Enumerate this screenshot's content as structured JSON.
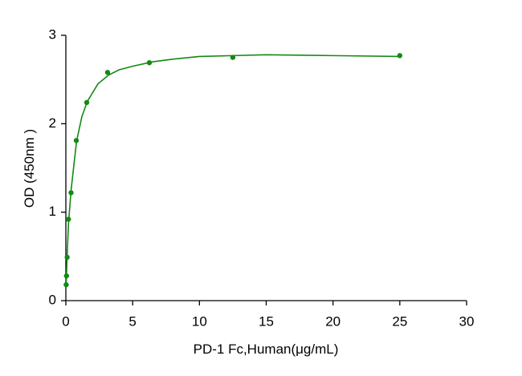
{
  "chart_data": {
    "type": "scatter",
    "x_label": "PD-1 Fc,Human(μg/mL)",
    "y_label": "OD (450nm )",
    "xlim": [
      0,
      30
    ],
    "xticks": [
      0,
      5,
      10,
      15,
      20,
      25,
      30
    ],
    "ylim": [
      0,
      3
    ],
    "yticks": [
      0,
      1,
      2,
      3
    ],
    "series": [
      {
        "type": "scatter",
        "color": "#138a13",
        "x": [
          25,
          12.5,
          6.25,
          3.125,
          1.5625,
          0.78125,
          0.390625,
          0.1953125,
          0.09765625,
          0.048828125,
          0.0244140625
        ],
        "values": [
          2.77,
          2.75,
          2.69,
          2.58,
          2.24,
          1.81,
          1.22,
          0.92,
          0.49,
          0.28,
          0.18
        ]
      },
      {
        "type": "line",
        "color": "#138a13",
        "x": [
          0.02,
          0.05,
          0.1,
          0.2,
          0.4,
          0.8,
          1.2,
          1.6,
          2.4,
          3.2,
          4,
          5,
          6.5,
          8,
          10,
          12.5,
          15,
          20,
          25
        ],
        "values": [
          0.16,
          0.3,
          0.52,
          0.88,
          1.26,
          1.8,
          2.08,
          2.25,
          2.45,
          2.55,
          2.61,
          2.65,
          2.7,
          2.73,
          2.76,
          2.77,
          2.78,
          2.77,
          2.76
        ]
      }
    ]
  }
}
